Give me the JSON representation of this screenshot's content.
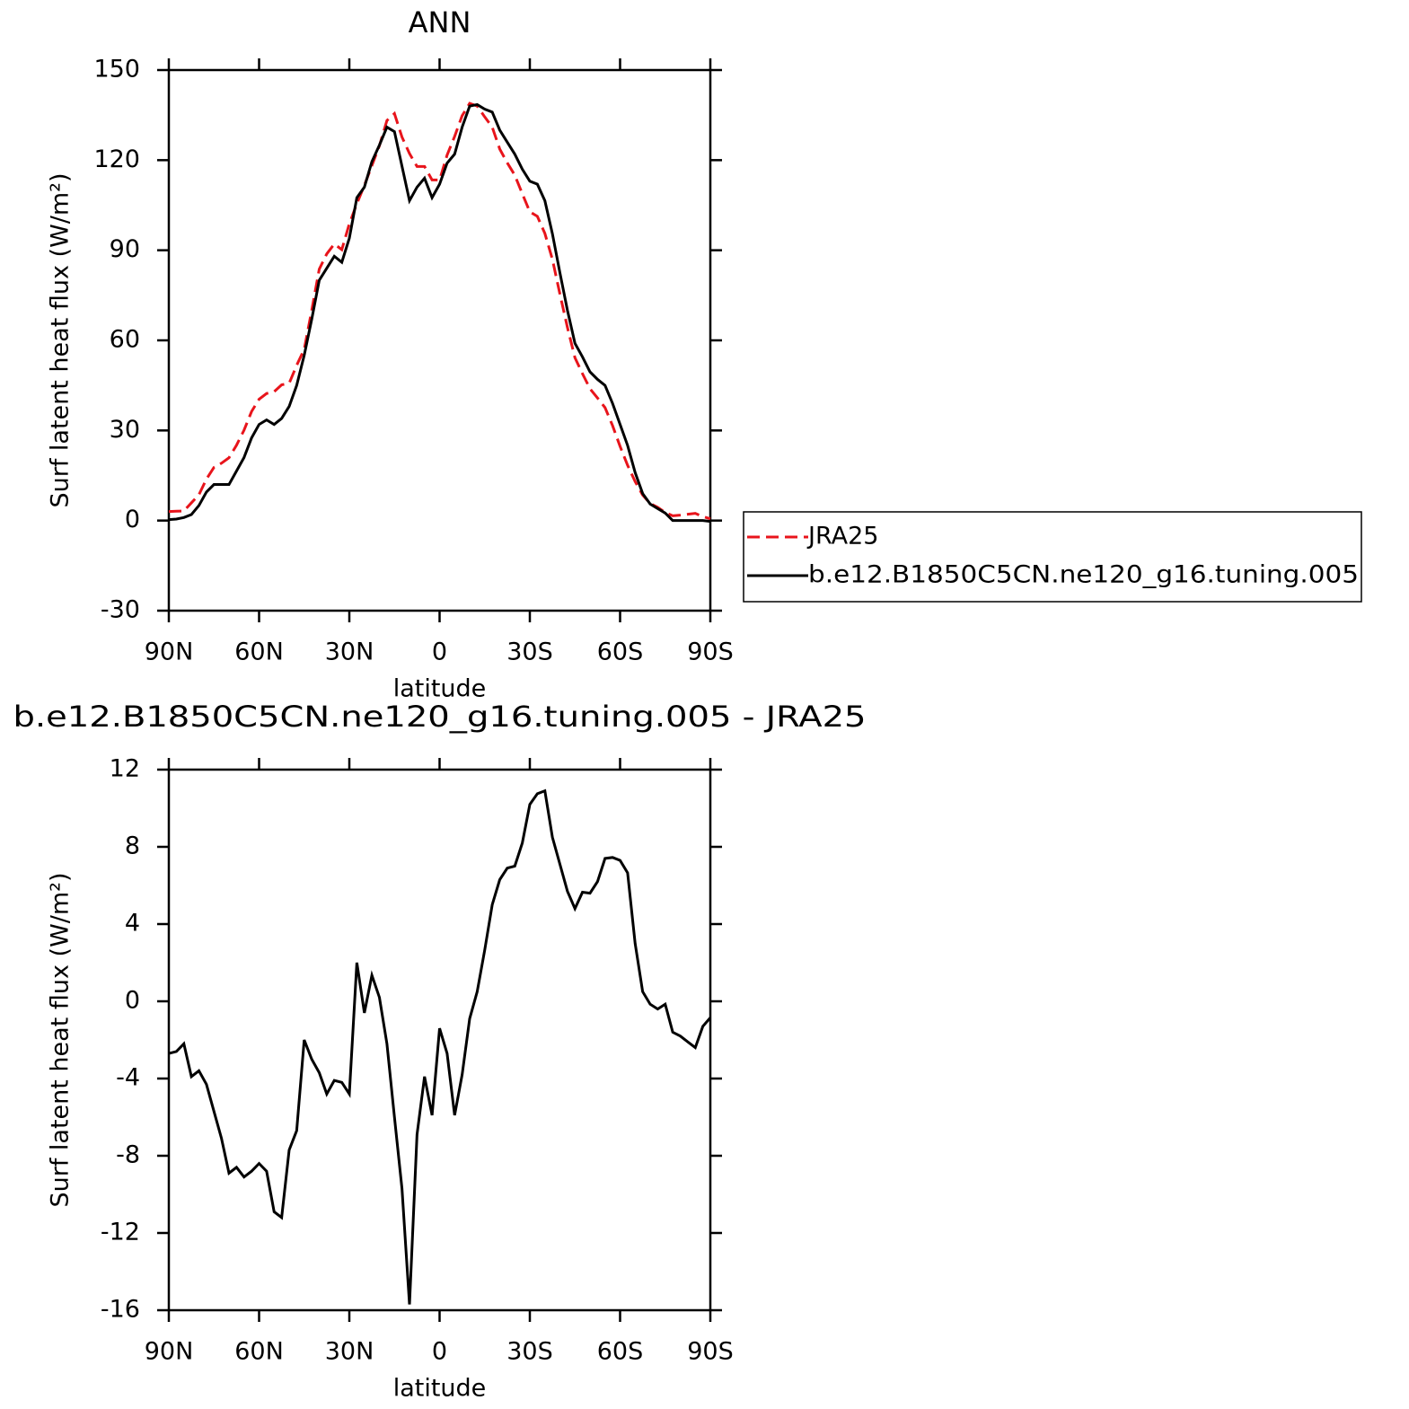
{
  "chart_data": [
    {
      "type": "line",
      "title": "ANN",
      "xlabel": "latitude",
      "ylabel": "Surf latent heat flux (W/m²)",
      "x": [
        90,
        87.5,
        85,
        82.5,
        80,
        77.5,
        75,
        72.5,
        70,
        67.5,
        65,
        62.5,
        60,
        57.5,
        55,
        52.5,
        50,
        47.5,
        45,
        42.5,
        40,
        37.5,
        35,
        32.5,
        30,
        27.5,
        25,
        22.5,
        20,
        17.5,
        15,
        12.5,
        10,
        7.5,
        5,
        2.5,
        0,
        -2.5,
        -5,
        -7.5,
        -10,
        -12.5,
        -15,
        -17.5,
        -20,
        -22.5,
        -25,
        -27.5,
        -30,
        -32.5,
        -35,
        -37.5,
        -40,
        -42.5,
        -45,
        -47.5,
        -50,
        -52.5,
        -55,
        -57.5,
        -60,
        -62.5,
        -65,
        -67.5,
        -70,
        -72.5,
        -75,
        -77.5,
        -80,
        -82.5,
        -85,
        -87.5,
        -90
      ],
      "series": [
        {
          "name": "JRA25",
          "color": "#e8141b",
          "linestyle": "dashed",
          "values": [
            3.0,
            3.1,
            3.2,
            5.9,
            8.6,
            13.8,
            17.7,
            19.1,
            20.9,
            25.1,
            30.1,
            36.3,
            40.4,
            42.3,
            42.9,
            45.2,
            45.7,
            51.7,
            57,
            70,
            83.7,
            88.8,
            92.1,
            90.2,
            98.8,
            105.5,
            111.6,
            118.2,
            124.8,
            133.2,
            135.5,
            127.7,
            122.2,
            117.9,
            117.9,
            113.4,
            113.4,
            121.7,
            127.9,
            134.8,
            138.9,
            138,
            134.4,
            131,
            123.7,
            119.1,
            115,
            108.8,
            102.8,
            101.3,
            95.6,
            87,
            75.4,
            64.3,
            54.2,
            48.9,
            43.9,
            40.8,
            37.6,
            31.6,
            24.7,
            18.4,
            13,
            8.5,
            5.7,
            4.4,
            2.7,
            1.6,
            1.8,
            2.1,
            2.4,
            1.3,
            0.6
          ]
        },
        {
          "name": "b.e12.B1850C5CN.ne120_g16.tuning.005",
          "color": "#000000",
          "linestyle": "solid",
          "values": [
            0.3,
            0.5,
            1,
            2,
            5,
            9.5,
            12,
            12,
            12,
            16.5,
            21,
            27.5,
            32,
            33.5,
            32,
            34,
            38,
            45,
            55,
            67,
            80,
            84,
            88,
            86,
            94,
            107.5,
            111,
            119.5,
            125,
            131,
            129.5,
            118,
            106.5,
            111,
            114,
            107.5,
            112,
            119,
            122,
            131,
            138,
            138.5,
            137,
            136,
            130,
            126,
            122,
            117,
            113,
            112,
            106.5,
            95.5,
            82.5,
            70,
            59,
            54.5,
            49.5,
            47,
            45,
            39,
            32,
            25,
            16,
            9,
            5.5,
            4,
            2.5,
            0,
            0,
            0,
            0,
            0,
            -0.3
          ]
        }
      ],
      "xlim": [
        90,
        -90
      ],
      "xticks": [
        {
          "value": 90,
          "label": "90N"
        },
        {
          "value": 60,
          "label": "60N"
        },
        {
          "value": 30,
          "label": "30N"
        },
        0,
        {
          "value": -30,
          "label": "30S"
        },
        {
          "value": -60,
          "label": "60S"
        },
        {
          "value": -90,
          "label": "90S"
        }
      ],
      "ylim": [
        -30,
        150
      ],
      "yticks": [
        -30,
        0,
        30,
        60,
        90,
        120,
        150
      ],
      "legend": "right"
    },
    {
      "type": "line",
      "title": "b.e12.B1850C5CN.ne120_g16.tuning.005 - JRA25",
      "xlabel": "latitude",
      "ylabel": "Surf latent heat flux (W/m²)",
      "x": [
        90,
        87.5,
        85,
        82.5,
        80,
        77.5,
        75,
        72.5,
        70,
        67.5,
        65,
        62.5,
        60,
        57.5,
        55,
        52.5,
        50,
        47.5,
        45,
        42.5,
        40,
        37.5,
        35,
        32.5,
        30,
        27.5,
        25,
        22.5,
        20,
        17.5,
        15,
        12.5,
        10,
        7.5,
        5,
        2.5,
        0,
        -2.5,
        -5,
        -7.5,
        -10,
        -12.5,
        -15,
        -17.5,
        -20,
        -22.5,
        -25,
        -27.5,
        -30,
        -32.5,
        -35,
        -37.5,
        -40,
        -42.5,
        -45,
        -47.5,
        -50,
        -52.5,
        -55,
        -57.5,
        -60,
        -62.5,
        -65,
        -67.5,
        -70,
        -72.5,
        -75,
        -77.5,
        -80,
        -82.5,
        -85,
        -87.5,
        -90
      ],
      "color": "#000000",
      "values": [
        -2.7,
        -2.6,
        -2.2,
        -3.9,
        -3.6,
        -4.3,
        -5.7,
        -7.1,
        -8.9,
        -8.6,
        -9.1,
        -8.8,
        -8.4,
        -8.8,
        -10.9,
        -11.2,
        -7.7,
        -6.7,
        -2.0,
        -3.0,
        -3.7,
        -4.8,
        -4.1,
        -4.2,
        -4.8,
        2.0,
        -0.6,
        1.35,
        0.2,
        -2.2,
        -6.0,
        -9.7,
        -15.7,
        -6.9,
        -3.9,
        -5.9,
        -1.4,
        -2.7,
        -5.9,
        -3.8,
        -0.9,
        0.5,
        2.65,
        5.0,
        6.3,
        6.9,
        7.0,
        8.2,
        10.2,
        10.75,
        10.9,
        8.5,
        7.1,
        5.7,
        4.8,
        5.65,
        5.6,
        6.2,
        7.4,
        7.45,
        7.3,
        6.65,
        3.0,
        0.5,
        -0.15,
        -0.4,
        -0.15,
        -1.6,
        -1.8,
        -2.1,
        -2.4,
        -1.3,
        -0.85
      ],
      "xlim": [
        90,
        -90
      ],
      "xticks": [
        {
          "value": 90,
          "label": "90N"
        },
        {
          "value": 60,
          "label": "60N"
        },
        {
          "value": 30,
          "label": "30N"
        },
        0,
        {
          "value": -30,
          "label": "30S"
        },
        {
          "value": -60,
          "label": "60S"
        },
        {
          "value": -90,
          "label": "90S"
        }
      ],
      "ylim": [
        -16,
        12
      ],
      "yticks": [
        -16,
        -12,
        -8,
        -4,
        0,
        4,
        8,
        12
      ]
    }
  ]
}
